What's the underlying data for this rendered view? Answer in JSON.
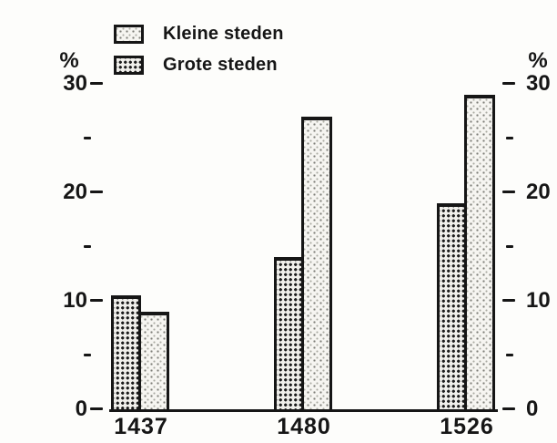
{
  "chart_data": {
    "type": "bar",
    "title": "",
    "categories": [
      "1437",
      "1480",
      "1526"
    ],
    "series": [
      {
        "name": "Grote steden",
        "pattern": "grid",
        "values": [
          10.5,
          14,
          19
        ]
      },
      {
        "name": "Kleine steden",
        "pattern": "stipple",
        "values": [
          9,
          27,
          29
        ]
      }
    ],
    "legend": {
      "position": "top-left",
      "items": [
        {
          "label": "Kleine steden",
          "pattern": "stipple"
        },
        {
          "label": "Grote steden",
          "pattern": "grid"
        }
      ]
    },
    "ylabel_left": "%",
    "ylabel_right": "%",
    "ylim": [
      0,
      30
    ],
    "yticks_major": [
      0,
      10,
      20,
      30
    ],
    "yticks_minor": [
      5,
      15,
      25
    ],
    "grid": false,
    "axes": {
      "left_axis_line": false,
      "right_axis_line": false,
      "bottom_axis_line": true
    },
    "colors": {
      "ink": "#161616",
      "paper": "#fdfdfb",
      "stipple_dot": "#7e7e78",
      "grid_dot": "#1c1c1c"
    }
  }
}
